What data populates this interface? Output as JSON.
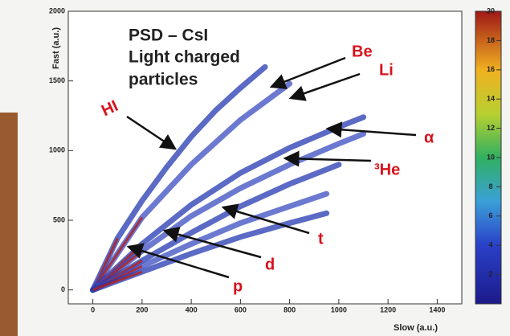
{
  "chart_data": {
    "type": "line",
    "text_lines": [
      "PSD – CsI",
      "Light charged",
      "particles"
    ],
    "x_label": "Slow (a.u.)",
    "y_label": "Fast (a.u.)",
    "xlim": [
      -100,
      1500
    ],
    "xticks": [
      0,
      200,
      400,
      600,
      800,
      1000,
      1200,
      1400
    ],
    "ylim": [
      -100,
      2000
    ],
    "yticks": [
      0,
      500,
      1000,
      1500,
      2000
    ],
    "zlim": [
      0,
      20
    ],
    "zticks": [
      2,
      4,
      6,
      8,
      10,
      12,
      14,
      16,
      18,
      20
    ],
    "annotations": [
      "HI",
      "Be",
      "Li",
      "α",
      "³He",
      "t",
      "d",
      "p"
    ],
    "series": [
      {
        "color": "#2438b0",
        "x": [
          0,
          100,
          200,
          300,
          400,
          500,
          600,
          700
        ],
        "values": [
          0,
          370,
          640,
          880,
          1100,
          1290,
          1450,
          1600
        ]
      },
      {
        "color": "#3a4cc0",
        "x": [
          0,
          200,
          400,
          600,
          800
        ],
        "values": [
          0,
          520,
          900,
          1220,
          1480
        ]
      },
      {
        "color": "#2438b0",
        "x": [
          0,
          200,
          400,
          600,
          800,
          1000,
          1100
        ],
        "values": [
          0,
          330,
          610,
          840,
          1020,
          1170,
          1240
        ]
      },
      {
        "color": "#3a4cc0",
        "x": [
          0,
          200,
          400,
          600,
          800,
          1000,
          1100
        ],
        "values": [
          0,
          280,
          530,
          730,
          900,
          1050,
          1120
        ]
      },
      {
        "color": "#2438b0",
        "x": [
          0,
          200,
          400,
          600,
          800,
          1000
        ],
        "values": [
          0,
          210,
          410,
          600,
          760,
          900
        ]
      },
      {
        "color": "#3a4cc0",
        "x": [
          0,
          200,
          400,
          600,
          800,
          950
        ],
        "values": [
          0,
          170,
          330,
          480,
          600,
          690
        ]
      },
      {
        "color": "#2438b0",
        "x": [
          0,
          200,
          400,
          600,
          800,
          950
        ],
        "values": [
          0,
          130,
          260,
          380,
          480,
          550
        ]
      }
    ]
  }
}
